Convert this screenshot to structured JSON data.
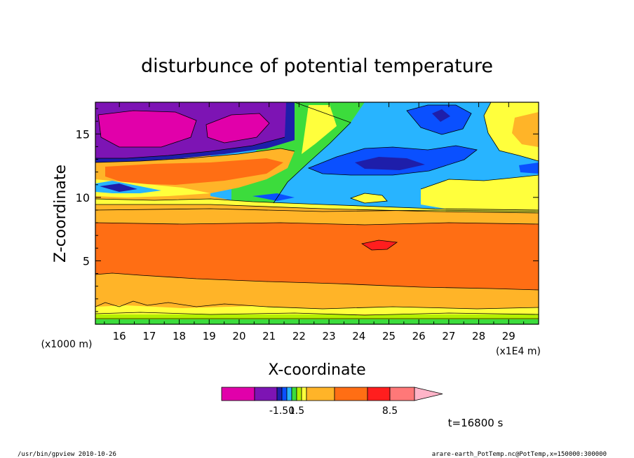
{
  "chart_data": {
    "type": "heatmap",
    "title": "disturbunce of potential temperature",
    "xlabel": "X-coordinate",
    "ylabel": "Z-coordinate",
    "x_unit_left": "(x1000 m)",
    "x_unit_right": "(x1E4 m)",
    "xlim": [
      15.2,
      30.0
    ],
    "ylim": [
      0.0,
      17.5
    ],
    "x_ticks": [
      16,
      17,
      18,
      19,
      20,
      21,
      22,
      23,
      24,
      25,
      26,
      27,
      28,
      29
    ],
    "y_ticks": [
      5,
      10,
      15
    ],
    "colorbar": {
      "colors": [
        "#e100aa",
        "#7d14b4",
        "#1e1eaa",
        "#0a50ff",
        "#28b4ff",
        "#3cdc3c",
        "#b4f000",
        "#ffff3c",
        "#ffb428",
        "#ff6e14",
        "#ff1e1e",
        "#ff7878",
        "#ffb4c8"
      ],
      "labels": [
        "-1.50",
        "1.5",
        "8.5"
      ],
      "label_positions": [
        3,
        6,
        11
      ]
    },
    "time_label": "t=16800 s"
  },
  "footer": {
    "left": "/usr/bin/gpview  2010-10-26",
    "right": "arare-earth_PotTemp.nc@PotTemp,x=150000:300000"
  }
}
